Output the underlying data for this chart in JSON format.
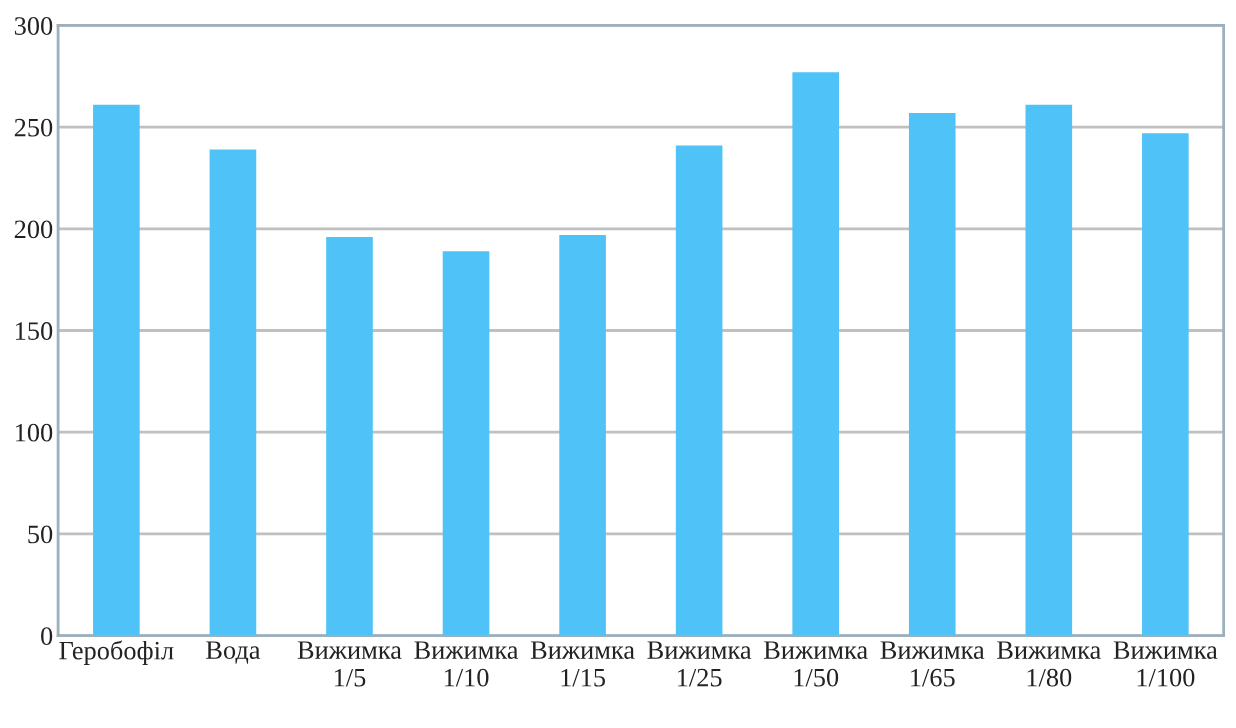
{
  "chart_data": {
    "type": "bar",
    "categories": [
      "Геробофіл",
      "Вода",
      "Вижимка\n1/5",
      "Вижимка\n1/10",
      "Вижимка\n1/15",
      "Вижимка\n1/25",
      "Вижимка\n1/50",
      "Вижимка\n1/65",
      "Вижимка\n1/80",
      "Вижимка\n1/100"
    ],
    "values": [
      261,
      239,
      196,
      189,
      197,
      241,
      277,
      257,
      261,
      247
    ],
    "color": "#4fc3f7",
    "ylim": [
      0,
      300
    ],
    "yticks": [
      0,
      50,
      100,
      150,
      200,
      250,
      300
    ],
    "grid": "y"
  }
}
